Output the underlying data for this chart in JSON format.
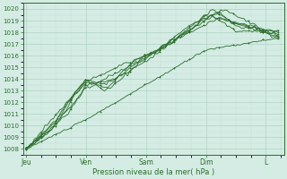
{
  "xlabel": "Pression niveau de la mer( hPa )",
  "bg_color": "#d4ece4",
  "grid_color_major": "#aaccbc",
  "grid_color_minor": "#c4e0d4",
  "line_color": "#2d6e2d",
  "ylim": [
    1007.5,
    1020.5
  ],
  "yticks": [
    1008,
    1009,
    1010,
    1011,
    1012,
    1013,
    1014,
    1015,
    1016,
    1017,
    1018,
    1019,
    1020
  ],
  "xtick_labels": [
    "Jeu",
    "Ven",
    "Sam",
    "Dim",
    "L"
  ],
  "xtick_pos": [
    0.0,
    1.0,
    2.0,
    3.0,
    4.0
  ],
  "xlim": [
    -0.05,
    4.3
  ],
  "n_points": 120
}
